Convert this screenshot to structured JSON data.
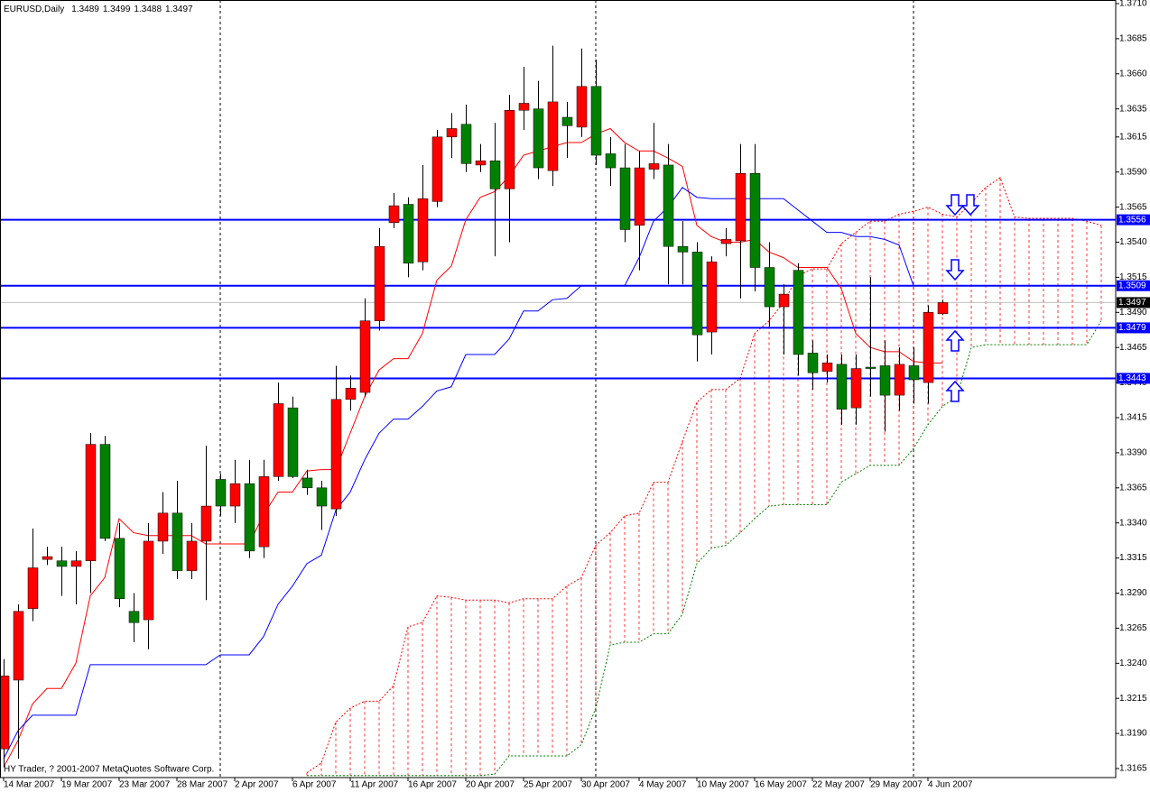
{
  "chart_data": {
    "type": "candlestick",
    "title": "EURUSD,Daily",
    "copyright": "HY Trader, ? 2001-2007 MetaQuotes Software Corp.",
    "xlim": [
      0,
      77
    ],
    "ylim": [
      1.3165,
      1.371
    ],
    "yticks": [
      {
        "value": 1.371,
        "label": "1.3710"
      },
      1.3685,
      {
        "value": 1.366,
        "label": "1.3660"
      },
      1.3635,
      1.3615,
      {
        "value": 1.359,
        "label": "1.3590"
      },
      1.3565,
      {
        "value": 1.354,
        "label": "1.3540"
      },
      1.3515,
      {
        "value": 1.349,
        "label": "1.3490"
      },
      1.3465,
      {
        "value": 1.344,
        "label": "1.3440"
      },
      1.3415,
      {
        "value": 1.339,
        "label": "1.3390"
      },
      1.3365,
      {
        "value": 1.334,
        "label": "1.3340"
      },
      1.3315,
      {
        "value": 1.329,
        "label": "1.3290"
      },
      1.3265,
      {
        "value": 1.324,
        "label": "1.3240"
      },
      1.3215,
      {
        "value": 1.319,
        "label": "1.3190"
      },
      1.3165
    ],
    "xticks": [
      {
        "value": 0,
        "label": "14 Mar 2007"
      },
      {
        "value": 4,
        "label": "19 Mar 2007"
      },
      {
        "value": 8,
        "label": "23 Mar 2007"
      },
      {
        "value": 12,
        "label": "28 Mar 2007"
      },
      {
        "value": 16,
        "label": "2 Apr 2007"
      },
      {
        "value": 20,
        "label": "6 Apr 2007"
      },
      {
        "value": 24,
        "label": "11 Apr 2007"
      },
      {
        "value": 28,
        "label": "16 Apr 2007"
      },
      {
        "value": 32,
        "label": "20 Apr 2007"
      },
      {
        "value": 36,
        "label": "25 Apr 2007"
      },
      {
        "value": 40,
        "label": "30 Apr 2007"
      },
      {
        "value": 44,
        "label": "4 May 2007"
      },
      {
        "value": 48,
        "label": "10 May 2007"
      },
      {
        "value": 52,
        "label": "16 May 2007"
      },
      {
        "value": 56,
        "label": "22 May 2007"
      },
      {
        "value": 60,
        "label": "29 May 2007"
      },
      {
        "value": 64,
        "label": "4 Jun 2007"
      }
    ],
    "separators": [
      15,
      41,
      63
    ],
    "up_color": "#ff0000",
    "down_color": "#008000",
    "open": [
      1.3179,
      1.3228,
      1.3279,
      1.3314,
      1.3313,
      1.3309,
      1.3313,
      1.3396,
      1.3329,
      1.3277,
      1.3271,
      1.3327,
      1.3347,
      1.3306,
      1.3327,
      1.3371,
      1.3352,
      1.3368,
      1.3323,
      1.3373,
      1.3422,
      1.3372,
      1.3365,
      1.335,
      1.3428,
      1.3433,
      1.3484,
      1.3554,
      1.3567,
      1.3526,
      1.3569,
      1.3615,
      1.3624,
      1.3595,
      1.3598,
      1.3578,
      1.3634,
      1.3635,
      1.3591,
      1.3629,
      1.3622,
      1.3651,
      1.3603,
      1.3593,
      1.3552,
      1.3592,
      1.3595,
      1.3537,
      1.3533,
      1.3476,
      1.3539,
      1.3541,
      1.3589,
      1.3522,
      1.3494,
      1.352,
      1.3461,
      1.3448,
      1.3453,
      1.3422,
      1.3451,
      1.3452,
      1.3431,
      1.3452,
      1.344,
      1.3489
    ],
    "high": [
      1.3243,
      1.3282,
      1.3336,
      1.3323,
      1.3323,
      1.332,
      1.3404,
      1.3402,
      1.334,
      1.329,
      1.334,
      1.3362,
      1.337,
      1.334,
      1.3395,
      1.3375,
      1.3385,
      1.3385,
      1.3385,
      1.344,
      1.343,
      1.3378,
      1.337,
      1.3452,
      1.3445,
      1.35,
      1.355,
      1.3575,
      1.3572,
      1.3595,
      1.362,
      1.3632,
      1.3638,
      1.361,
      1.3625,
      1.3645,
      1.3665,
      1.3655,
      1.368,
      1.364,
      1.3678,
      1.367,
      1.3615,
      1.361,
      1.3605,
      1.3625,
      1.361,
      1.3555,
      1.354,
      1.353,
      1.355,
      1.361,
      1.361,
      1.354,
      1.351,
      1.3525,
      1.347,
      1.346,
      1.346,
      1.346,
      1.3515,
      1.347,
      1.3465,
      1.3465,
      1.3495,
      1.3499
    ],
    "low": [
      1.3166,
      1.3172,
      1.327,
      1.331,
      1.3288,
      1.3282,
      1.329,
      1.3327,
      1.328,
      1.3255,
      1.325,
      1.3318,
      1.33,
      1.33,
      1.3285,
      1.3345,
      1.334,
      1.3315,
      1.3315,
      1.337,
      1.3372,
      1.336,
      1.3335,
      1.3345,
      1.342,
      1.343,
      1.3477,
      1.355,
      1.3515,
      1.352,
      1.3565,
      1.36,
      1.359,
      1.359,
      1.353,
      1.354,
      1.362,
      1.3585,
      1.358,
      1.36,
      1.3615,
      1.3595,
      1.358,
      1.354,
      1.352,
      1.3585,
      1.351,
      1.351,
      1.3455,
      1.346,
      1.353,
      1.35,
      1.3505,
      1.348,
      1.346,
      1.3445,
      1.3435,
      1.344,
      1.341,
      1.341,
      1.343,
      1.3405,
      1.342,
      1.3425,
      1.3425,
      1.3488
    ],
    "close": [
      1.3231,
      1.3277,
      1.3308,
      1.3316,
      1.3309,
      1.3313,
      1.3396,
      1.3329,
      1.3286,
      1.3269,
      1.3327,
      1.3347,
      1.3306,
      1.3327,
      1.3352,
      1.3352,
      1.3368,
      1.332,
      1.3373,
      1.3425,
      1.3373,
      1.3365,
      1.3352,
      1.3428,
      1.3436,
      1.3484,
      1.3537,
      1.3566,
      1.3525,
      1.3571,
      1.3615,
      1.3621,
      1.3596,
      1.3598,
      1.3578,
      1.3634,
      1.3639,
      1.3593,
      1.364,
      1.3623,
      1.3651,
      1.3602,
      1.3593,
      1.3549,
      1.3593,
      1.3596,
      1.3537,
      1.3533,
      1.3474,
      1.3526,
      1.3542,
      1.3589,
      1.3522,
      1.3494,
      1.3503,
      1.346,
      1.3447,
      1.3454,
      1.3421,
      1.345,
      1.345,
      1.3431,
      1.3453,
      1.3442,
      1.349,
      1.3497
    ],
    "bid_color": "#c0c0c0",
    "lines": [
      {
        "color": "#ff0000",
        "values": [
          1.3166,
          1.3185,
          1.3211,
          1.3222,
          1.3222,
          1.324,
          1.3288,
          1.3301,
          1.3343,
          1.3333,
          1.3331,
          1.3331,
          1.3331,
          1.3331,
          1.3325,
          1.3325,
          1.3325,
          1.3325,
          1.3346,
          1.3362,
          1.3362,
          1.3377,
          1.3378,
          1.3378,
          1.3404,
          1.343,
          1.3449,
          1.3457,
          1.3457,
          1.3475,
          1.3513,
          1.3523,
          1.3556,
          1.3572,
          1.3576,
          1.3587,
          1.3602,
          1.3605,
          1.3608,
          1.3611,
          1.3611,
          1.3617,
          1.3621,
          1.3611,
          1.3605,
          1.3605,
          1.36,
          1.3594,
          1.3552,
          1.3544,
          1.354,
          1.354,
          1.3542,
          1.3533,
          1.3529,
          1.3522,
          1.3522,
          1.3522,
          1.3507,
          1.3475,
          1.3465,
          1.3462,
          1.3462,
          1.3455,
          1.3454,
          1.3454
        ]
      },
      {
        "color": "#0000ff",
        "values": [
          1.3172,
          1.3192,
          1.3203,
          1.3203,
          1.3203,
          1.3203,
          1.3239,
          1.3239,
          1.3239,
          1.3239,
          1.3239,
          1.3239,
          1.3239,
          1.3239,
          1.3239,
          1.3246,
          1.3246,
          1.3246,
          1.3259,
          1.3282,
          1.3295,
          1.3311,
          1.3317,
          1.3349,
          1.3362,
          1.3385,
          1.3404,
          1.3414,
          1.3414,
          1.3423,
          1.3434,
          1.3437,
          1.346,
          1.346,
          1.346,
          1.3471,
          1.3491,
          1.3491,
          1.3499,
          1.35,
          1.3509,
          1.3509,
          1.3509,
          1.3509,
          1.3529,
          1.3555,
          1.3565,
          1.3579,
          1.3572,
          1.3571,
          1.3571,
          1.3571,
          1.3571,
          1.3571,
          1.3571,
          1.3563,
          1.3555,
          1.3547,
          1.3547,
          1.3544,
          1.3544,
          1.3542,
          1.3538,
          1.3509,
          1.3509,
          1.3509
        ]
      }
    ],
    "cloud": {
      "hatch_color": "#ff0000",
      "span_a_color": "#ff0000",
      "span_b_color": "#008000",
      "span_a": [
        null,
        null,
        null,
        null,
        null,
        null,
        null,
        null,
        null,
        null,
        null,
        null,
        null,
        null,
        null,
        null,
        null,
        null,
        null,
        null,
        null,
        1.3162,
        1.3169,
        1.3198,
        1.3208,
        1.3213,
        1.3213,
        1.3224,
        1.3266,
        1.3269,
        1.3288,
        1.3287,
        1.3285,
        1.3285,
        1.3285,
        1.3283,
        1.3286,
        1.3286,
        1.3286,
        1.3295,
        1.3301,
        1.3324,
        1.3333,
        1.3345,
        1.3347,
        1.3369,
        1.3369,
        1.3398,
        1.3426,
        1.3435,
        1.3435,
        1.3443,
        1.3475,
        1.3484,
        1.3497,
        1.3516,
        1.3521,
        1.3521,
        1.3539,
        1.3547,
        1.3555,
        1.3555,
        1.356,
        1.3562,
        1.3565,
        1.356,
        1.3558,
        1.3568,
        1.3579,
        1.3586,
        1.3558,
        1.3557,
        1.3557,
        1.3557,
        1.3557,
        1.3555,
        1.3552
      ],
      "span_b": [
        null,
        null,
        null,
        null,
        null,
        null,
        null,
        null,
        null,
        null,
        null,
        null,
        null,
        null,
        null,
        null,
        null,
        null,
        null,
        null,
        null,
        1.316,
        1.316,
        1.316,
        1.316,
        1.316,
        1.316,
        1.316,
        1.316,
        1.316,
        1.316,
        1.316,
        1.316,
        1.316,
        1.3161,
        1.3174,
        1.3174,
        1.3174,
        1.3174,
        1.3174,
        1.3182,
        1.3208,
        1.3253,
        1.3255,
        1.3255,
        1.3261,
        1.3261,
        1.3275,
        1.3311,
        1.3322,
        1.3324,
        1.3333,
        1.3343,
        1.3352,
        1.3353,
        1.3353,
        1.3353,
        1.3353,
        1.3369,
        1.3375,
        1.3381,
        1.3381,
        1.3381,
        1.3393,
        1.341,
        1.3423,
        1.343,
        1.3465,
        1.3467,
        1.3467,
        1.3467,
        1.3467,
        1.3467,
        1.3467,
        1.3467,
        1.3467,
        1.3484
      ]
    },
    "levels": {
      "color": "#0000ff",
      "values": [
        1.3556,
        1.3509,
        1.3479,
        1.3443
      ]
    }
  }
}
